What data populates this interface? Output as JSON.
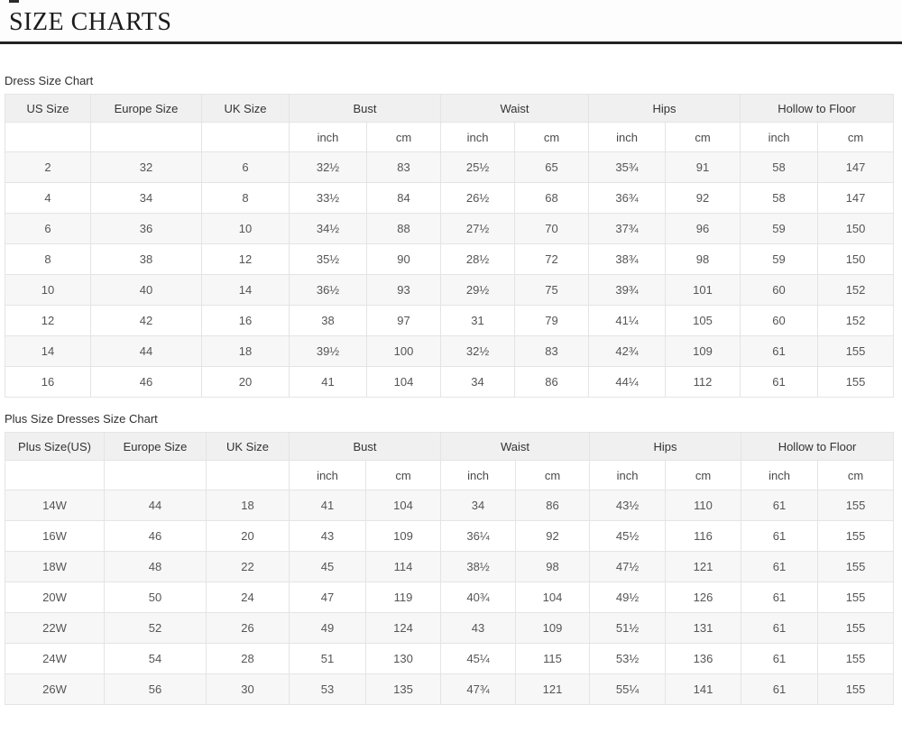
{
  "title": "SIZE CHARTS",
  "colors": {
    "title_rule": "#232323",
    "header_bg": "#f0f0f0",
    "stripe_bg": "#f7f7f7",
    "border": "#e4e4e4",
    "text": "#555555"
  },
  "tables": [
    {
      "label": "Dress Size Chart",
      "column_groups": [
        {
          "label": "US Size",
          "cols": 1
        },
        {
          "label": "Europe Size",
          "cols": 1
        },
        {
          "label": "UK Size",
          "cols": 1
        },
        {
          "label": "Bust",
          "cols": 2
        },
        {
          "label": "Waist",
          "cols": 2
        },
        {
          "label": "Hips",
          "cols": 2
        },
        {
          "label": "Hollow to Floor",
          "cols": 2
        }
      ],
      "unit_row": [
        "",
        "",
        "",
        "inch",
        "cm",
        "inch",
        "cm",
        "inch",
        "cm",
        "inch",
        "cm"
      ],
      "rows": [
        [
          "2",
          "32",
          "6",
          "32½",
          "83",
          "25½",
          "65",
          "35¾",
          "91",
          "58",
          "147"
        ],
        [
          "4",
          "34",
          "8",
          "33½",
          "84",
          "26½",
          "68",
          "36¾",
          "92",
          "58",
          "147"
        ],
        [
          "6",
          "36",
          "10",
          "34½",
          "88",
          "27½",
          "70",
          "37¾",
          "96",
          "59",
          "150"
        ],
        [
          "8",
          "38",
          "12",
          "35½",
          "90",
          "28½",
          "72",
          "38¾",
          "98",
          "59",
          "150"
        ],
        [
          "10",
          "40",
          "14",
          "36½",
          "93",
          "29½",
          "75",
          "39¾",
          "101",
          "60",
          "152"
        ],
        [
          "12",
          "42",
          "16",
          "38",
          "97",
          "31",
          "79",
          "41¼",
          "105",
          "60",
          "152"
        ],
        [
          "14",
          "44",
          "18",
          "39½",
          "100",
          "32½",
          "83",
          "42¾",
          "109",
          "61",
          "155"
        ],
        [
          "16",
          "46",
          "20",
          "41",
          "104",
          "34",
          "86",
          "44¼",
          "112",
          "61",
          "155"
        ]
      ]
    },
    {
      "label": "Plus Size Dresses Size Chart",
      "column_groups": [
        {
          "label": "Plus Size(US)",
          "cols": 1
        },
        {
          "label": "Europe Size",
          "cols": 1
        },
        {
          "label": "UK Size",
          "cols": 1
        },
        {
          "label": "Bust",
          "cols": 2
        },
        {
          "label": "Waist",
          "cols": 2
        },
        {
          "label": "Hips",
          "cols": 2
        },
        {
          "label": "Hollow to Floor",
          "cols": 2
        }
      ],
      "unit_row": [
        "",
        "",
        "",
        "inch",
        "cm",
        "inch",
        "cm",
        "inch",
        "cm",
        "inch",
        "cm"
      ],
      "rows": [
        [
          "14W",
          "44",
          "18",
          "41",
          "104",
          "34",
          "86",
          "43½",
          "110",
          "61",
          "155"
        ],
        [
          "16W",
          "46",
          "20",
          "43",
          "109",
          "36¼",
          "92",
          "45½",
          "116",
          "61",
          "155"
        ],
        [
          "18W",
          "48",
          "22",
          "45",
          "114",
          "38½",
          "98",
          "47½",
          "121",
          "61",
          "155"
        ],
        [
          "20W",
          "50",
          "24",
          "47",
          "119",
          "40¾",
          "104",
          "49½",
          "126",
          "61",
          "155"
        ],
        [
          "22W",
          "52",
          "26",
          "49",
          "124",
          "43",
          "109",
          "51½",
          "131",
          "61",
          "155"
        ],
        [
          "24W",
          "54",
          "28",
          "51",
          "130",
          "45¼",
          "115",
          "53½",
          "136",
          "61",
          "155"
        ],
        [
          "26W",
          "56",
          "30",
          "53",
          "135",
          "47¾",
          "121",
          "55¼",
          "141",
          "61",
          "155"
        ]
      ]
    }
  ]
}
